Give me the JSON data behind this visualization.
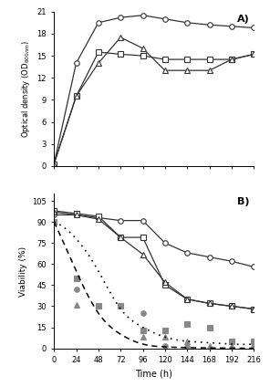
{
  "time": [
    0,
    24,
    48,
    72,
    96,
    120,
    144,
    168,
    192,
    216
  ],
  "od_circle": [
    0.3,
    14,
    19.5,
    20.2,
    20.5,
    20.0,
    19.5,
    19.2,
    19.0,
    18.8
  ],
  "od_square": [
    0.3,
    9.5,
    15.5,
    15.2,
    15.0,
    14.5,
    14.5,
    14.5,
    14.5,
    15.2
  ],
  "od_triangle": [
    0.3,
    9.5,
    14.0,
    17.5,
    16.0,
    13.0,
    13.0,
    13.0,
    14.5,
    15.2
  ],
  "viab_circle_open": [
    95,
    95,
    93,
    91,
    91,
    75,
    68,
    65,
    62,
    58
  ],
  "viab_square_open": [
    98,
    96,
    94,
    79,
    79,
    45,
    35,
    32,
    30,
    28
  ],
  "viab_triangle_open": [
    97,
    95,
    92,
    79,
    67,
    47,
    35,
    32,
    30,
    28
  ],
  "viab_circle_filled": [
    90,
    42,
    30,
    30,
    25,
    2,
    1,
    0,
    0,
    1
  ],
  "viab_square_filled": [
    90,
    50,
    30,
    30,
    13,
    13,
    17,
    15,
    5,
    5
  ],
  "viab_triangle_filled": [
    90,
    31,
    30,
    30,
    8,
    8,
    5,
    2,
    2,
    1
  ],
  "curve_dashed_t": [
    0,
    24,
    48,
    72,
    96,
    120,
    144,
    168,
    192,
    216
  ],
  "curve_dashed_y": [
    90,
    55,
    25,
    10,
    3,
    1,
    0.5,
    0.3,
    0.1,
    0.05
  ],
  "curve_dotted_t": [
    0,
    24,
    48,
    72,
    96,
    120,
    144,
    168,
    192,
    216
  ],
  "curve_dotted_y": [
    90,
    78,
    55,
    28,
    15,
    8,
    5,
    4,
    3,
    3
  ],
  "ylim_a": [
    0,
    21
  ],
  "ylim_b": [
    0,
    110
  ],
  "yticks_a": [
    0,
    3,
    6,
    9,
    12,
    15,
    18,
    21
  ],
  "yticks_b": [
    0,
    15,
    30,
    45,
    60,
    75,
    90,
    105
  ],
  "xticks": [
    0,
    24,
    48,
    72,
    96,
    120,
    144,
    168,
    192,
    216
  ],
  "xlabel": "Time (h)",
  "ylabel_a": "Optical density (OD600nm)",
  "ylabel_b": "Viability (%)",
  "label_A": "A)",
  "label_B": "B)",
  "line_color": "#333333",
  "fill_color": "#888888",
  "bg_color": "#ffffff"
}
